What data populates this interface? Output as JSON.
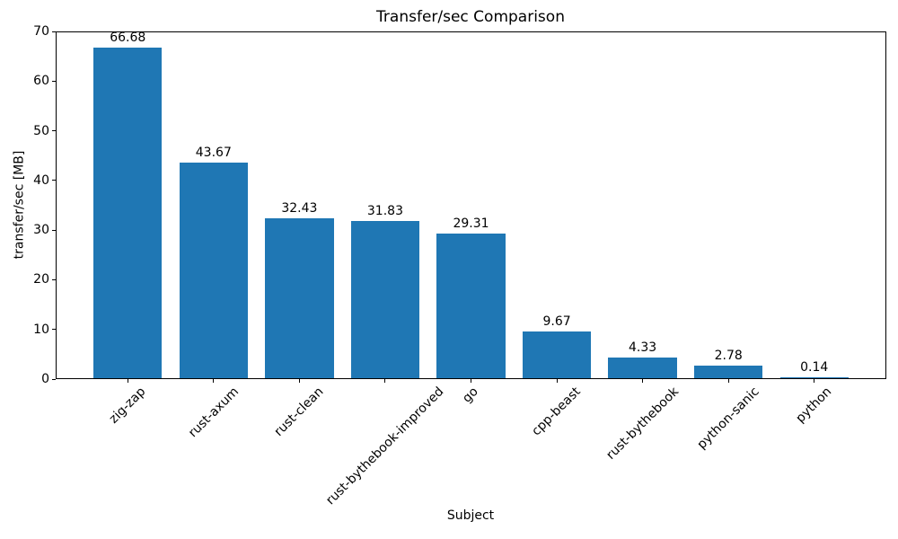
{
  "chart_data": {
    "type": "bar",
    "title": "Transfer/sec Comparison",
    "xlabel": "Subject",
    "ylabel": "transfer/sec [MB]",
    "categories": [
      "zig-zap",
      "rust-axum",
      "rust-clean",
      "rust-bythebook-improved",
      "go",
      "cpp-beast",
      "rust-bythebook",
      "python-sanic",
      "python"
    ],
    "values": [
      66.68,
      43.67,
      32.43,
      31.83,
      29.31,
      9.67,
      4.33,
      2.78,
      0.14
    ],
    "bar_labels": [
      "66.68",
      "43.67",
      "32.43",
      "31.83",
      "29.31",
      "9.67",
      "4.33",
      "2.78",
      "0.14"
    ],
    "ylim": [
      0,
      70
    ],
    "yticks": [
      0,
      10,
      20,
      30,
      40,
      50,
      60,
      70
    ],
    "ytick_labels": [
      "0",
      "10",
      "20",
      "30",
      "40",
      "50",
      "60",
      "70"
    ],
    "bar_color": "#1f77b4",
    "axis_color": "#000000",
    "text_color": "#000000",
    "background_color": "#ffffff",
    "grid": false,
    "legend_position": "none",
    "xtick_rotation_deg": 45,
    "bar_width_fraction": 0.8
  }
}
